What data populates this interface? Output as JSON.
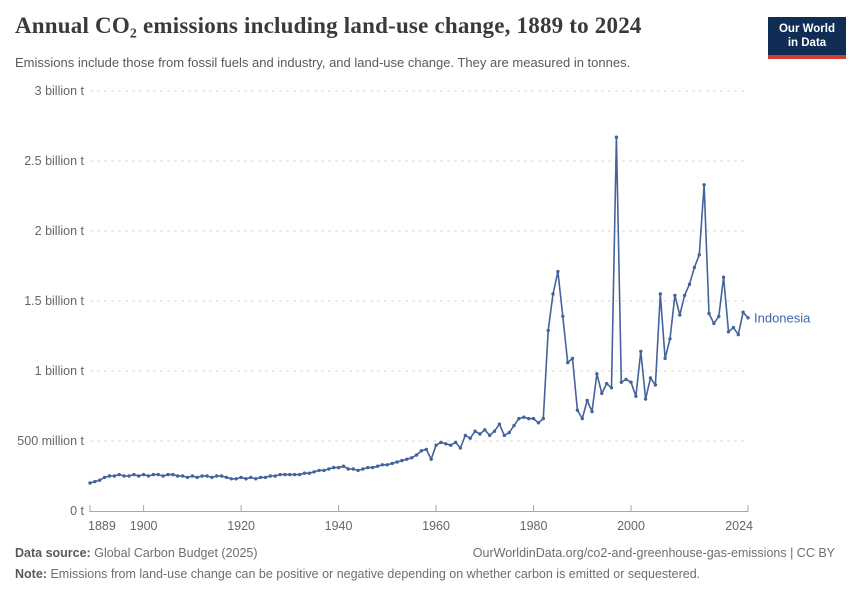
{
  "header": {
    "title": "Annual CO₂ emissions including land-use change, 1889 to 2024",
    "subtitle": "Emissions include those from fossil fuels and industry, and land-use change. They are measured in tonnes."
  },
  "logo": {
    "line1": "Our World",
    "line2": "in Data",
    "bg_color": "#102d55",
    "bar_color": "#d73b33"
  },
  "chart_data": {
    "type": "line",
    "title": "Annual CO₂ emissions including land-use change, 1889 to 2024",
    "entity_label": "Indonesia",
    "unit": "tonnes",
    "ylim": [
      0,
      3
    ],
    "grid": true,
    "x": [
      1889,
      1890,
      1891,
      1892,
      1893,
      1894,
      1895,
      1896,
      1897,
      1898,
      1899,
      1900,
      1901,
      1902,
      1903,
      1904,
      1905,
      1906,
      1907,
      1908,
      1909,
      1910,
      1911,
      1912,
      1913,
      1914,
      1915,
      1916,
      1917,
      1918,
      1919,
      1920,
      1921,
      1922,
      1923,
      1924,
      1925,
      1926,
      1927,
      1928,
      1929,
      1930,
      1931,
      1932,
      1933,
      1934,
      1935,
      1936,
      1937,
      1938,
      1939,
      1940,
      1941,
      1942,
      1943,
      1944,
      1945,
      1946,
      1947,
      1948,
      1949,
      1950,
      1951,
      1952,
      1953,
      1954,
      1955,
      1956,
      1957,
      1958,
      1959,
      1960,
      1961,
      1962,
      1963,
      1964,
      1965,
      1966,
      1967,
      1968,
      1969,
      1970,
      1971,
      1972,
      1973,
      1974,
      1975,
      1976,
      1977,
      1978,
      1979,
      1980,
      1981,
      1982,
      1983,
      1984,
      1985,
      1986,
      1987,
      1988,
      1989,
      1990,
      1991,
      1992,
      1993,
      1994,
      1995,
      1996,
      1997,
      1998,
      1999,
      2000,
      2001,
      2002,
      2003,
      2004,
      2005,
      2006,
      2007,
      2008,
      2009,
      2010,
      2011,
      2012,
      2013,
      2014,
      2015,
      2016,
      2017,
      2018,
      2019,
      2020,
      2021,
      2022,
      2023,
      2024
    ],
    "series": [
      {
        "name": "Indonesia",
        "values_billion_tonnes": [
          0.2,
          0.21,
          0.22,
          0.24,
          0.25,
          0.25,
          0.26,
          0.25,
          0.25,
          0.26,
          0.25,
          0.26,
          0.25,
          0.26,
          0.26,
          0.25,
          0.26,
          0.26,
          0.25,
          0.25,
          0.24,
          0.25,
          0.24,
          0.25,
          0.25,
          0.24,
          0.25,
          0.25,
          0.24,
          0.23,
          0.23,
          0.24,
          0.23,
          0.24,
          0.23,
          0.24,
          0.24,
          0.25,
          0.25,
          0.26,
          0.26,
          0.26,
          0.26,
          0.26,
          0.27,
          0.27,
          0.28,
          0.29,
          0.29,
          0.3,
          0.31,
          0.31,
          0.32,
          0.3,
          0.3,
          0.29,
          0.3,
          0.31,
          0.31,
          0.32,
          0.33,
          0.33,
          0.34,
          0.35,
          0.36,
          0.37,
          0.38,
          0.4,
          0.43,
          0.44,
          0.37,
          0.47,
          0.49,
          0.48,
          0.47,
          0.49,
          0.45,
          0.54,
          0.52,
          0.57,
          0.55,
          0.58,
          0.54,
          0.57,
          0.62,
          0.54,
          0.56,
          0.61,
          0.66,
          0.67,
          0.66,
          0.66,
          0.63,
          0.66,
          1.29,
          1.55,
          1.71,
          1.39,
          1.06,
          1.09,
          0.72,
          0.66,
          0.79,
          0.71,
          0.98,
          0.84,
          0.91,
          0.88,
          2.67,
          0.92,
          0.94,
          0.92,
          0.82,
          1.14,
          0.8,
          0.95,
          0.9,
          1.55,
          1.09,
          1.23,
          1.54,
          1.4,
          1.54,
          1.62,
          1.74,
          1.83,
          2.33,
          1.41,
          1.34,
          1.39,
          1.67,
          1.28,
          1.31,
          1.26,
          1.42,
          1.38
        ]
      }
    ],
    "y_ticks": [
      {
        "value": 0,
        "label": "0 t"
      },
      {
        "value": 0.5,
        "label": "500 million t"
      },
      {
        "value": 1,
        "label": "1 billion t"
      },
      {
        "value": 1.5,
        "label": "1.5 billion t"
      },
      {
        "value": 2,
        "label": "2 billion t"
      },
      {
        "value": 2.5,
        "label": "2.5 billion t"
      },
      {
        "value": 3,
        "label": "3 billion t"
      }
    ],
    "x_ticks": [
      1889,
      1900,
      1920,
      1940,
      1960,
      1980,
      2000,
      2024
    ],
    "colors": {
      "line": "#44639c",
      "entity_label": "#3f66a6",
      "grid": "#d8d8d8",
      "axis": "#a8a8a8",
      "tick_text": "#666666"
    }
  },
  "footer": {
    "datasource_label": "Data source:",
    "datasource_value": "Global Carbon Budget (2025)",
    "link": "OurWorldinData.org/co2-and-greenhouse-gas-emissions | CC BY",
    "note_label": "Note:",
    "note_text": "Emissions from land-use change can be positive or negative depending on whether carbon is emitted or sequestered."
  }
}
